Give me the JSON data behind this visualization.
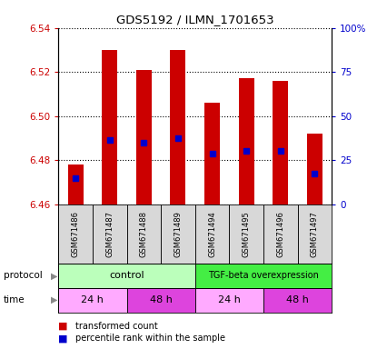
{
  "title": "GDS5192 / ILMN_1701653",
  "samples": [
    "GSM671486",
    "GSM671487",
    "GSM671488",
    "GSM671489",
    "GSM671494",
    "GSM671495",
    "GSM671496",
    "GSM671497"
  ],
  "bar_bottoms": [
    6.46,
    6.46,
    6.46,
    6.46,
    6.46,
    6.46,
    6.46,
    6.46
  ],
  "bar_tops": [
    6.478,
    6.53,
    6.521,
    6.53,
    6.506,
    6.517,
    6.516,
    6.492
  ],
  "percentile_vals": [
    6.472,
    6.489,
    6.488,
    6.49,
    6.483,
    6.484,
    6.484,
    6.474
  ],
  "ylim": [
    6.46,
    6.54
  ],
  "yticks_left": [
    6.46,
    6.48,
    6.5,
    6.52,
    6.54
  ],
  "ytick_right_labels": [
    "0",
    "25",
    "50",
    "75",
    "100%"
  ],
  "bar_color": "#cc0000",
  "percentile_color": "#0000cc",
  "bar_width": 0.45,
  "control_color": "#bbffbb",
  "tgf_color": "#44ee44",
  "time24_color": "#ffaaff",
  "time48_color": "#dd44dd",
  "label_color_left": "#cc0000",
  "label_color_right": "#0000cc",
  "legend_red": "transformed count",
  "legend_blue": "percentile rank within the sample"
}
